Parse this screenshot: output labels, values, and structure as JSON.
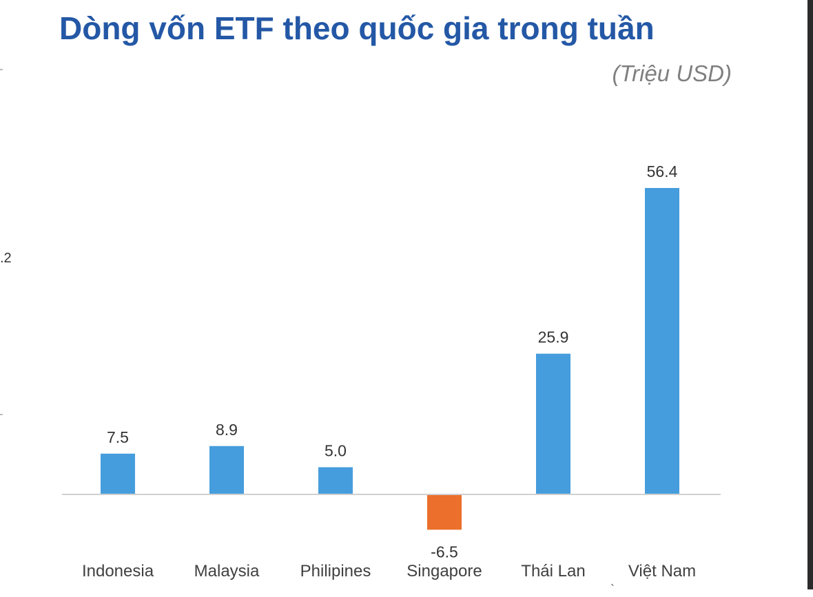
{
  "header": {
    "title": "Dòng vốn ETF theo quốc gia trong tuần",
    "unit": "(Triệu USD)"
  },
  "edge": {
    "partial_tick_label": ".2"
  },
  "colors": {
    "title": "#2458a6",
    "positive_bar": "#469ddd",
    "negative_bar": "#ec6f2c",
    "axis": "#d0d0d0"
  },
  "chart_data": {
    "type": "bar",
    "title": "Dòng vốn ETF theo quốc gia trong tuần",
    "unit": "(Triệu USD)",
    "categories": [
      "Indonesia",
      "Malaysia",
      "Philipines",
      "Singapore",
      "Thái Lan",
      "Việt Nam"
    ],
    "values": [
      7.5,
      8.9,
      5.0,
      -6.5,
      25.9,
      56.4
    ],
    "value_labels": [
      "7.5",
      "8.9",
      "5.0",
      "-6.5",
      "25.9",
      "56.4"
    ],
    "ylim": [
      -6.5,
      56.4
    ],
    "grid": false,
    "legend": "none"
  }
}
